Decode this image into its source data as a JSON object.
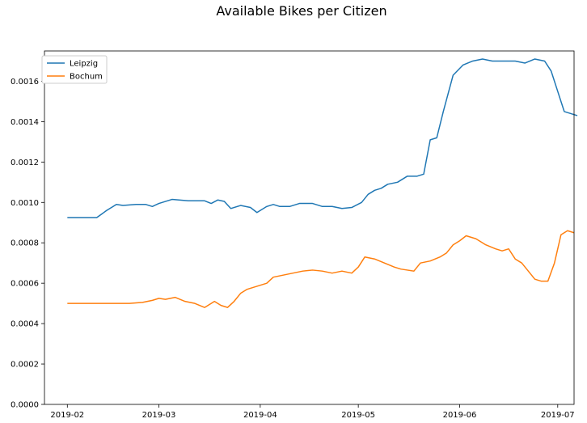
{
  "chart_data": {
    "type": "line",
    "title": "Available Bikes per Citizen",
    "xlabel": "",
    "ylabel": "",
    "x_type": "date",
    "xlim": [
      "2019-01-25",
      "2019-07-06"
    ],
    "ylim": [
      0,
      0.00175
    ],
    "x_ticks": [
      "2019-02-01",
      "2019-03-01",
      "2019-04-01",
      "2019-05-01",
      "2019-06-01",
      "2019-07-01"
    ],
    "x_tick_labels": [
      "2019-02",
      "2019-03",
      "2019-04",
      "2019-05",
      "2019-06",
      "2019-07"
    ],
    "y_ticks": [
      0,
      0.0002,
      0.0004,
      0.0006,
      0.0008,
      0.001,
      0.0012,
      0.0014,
      0.0016
    ],
    "y_tick_labels": [
      "0.0000",
      "0.0002",
      "0.0004",
      "0.0006",
      "0.0008",
      "0.0010",
      "0.0012",
      "0.0014",
      "0.0016"
    ],
    "grid": false,
    "legend_position": "top-left",
    "series": [
      {
        "name": "Leipzig",
        "color": "#1f77b4",
        "points": [
          [
            "2019-02-01",
            0.000925
          ],
          [
            "2019-02-10",
            0.000925
          ],
          [
            "2019-02-13",
            0.00096
          ],
          [
            "2019-02-16",
            0.00099
          ],
          [
            "2019-02-18",
            0.000985
          ],
          [
            "2019-02-22",
            0.00099
          ],
          [
            "2019-02-25",
            0.00099
          ],
          [
            "2019-02-27",
            0.00098
          ],
          [
            "2019-03-01",
            0.000995
          ],
          [
            "2019-03-05",
            0.001015
          ],
          [
            "2019-03-10",
            0.001008
          ],
          [
            "2019-03-15",
            0.001008
          ],
          [
            "2019-03-17",
            0.000995
          ],
          [
            "2019-03-19",
            0.001012
          ],
          [
            "2019-03-21",
            0.001005
          ],
          [
            "2019-03-23",
            0.00097
          ],
          [
            "2019-03-26",
            0.000985
          ],
          [
            "2019-03-29",
            0.000975
          ],
          [
            "2019-03-31",
            0.00095
          ],
          [
            "2019-04-03",
            0.00098
          ],
          [
            "2019-04-05",
            0.00099
          ],
          [
            "2019-04-07",
            0.00098
          ],
          [
            "2019-04-10",
            0.00098
          ],
          [
            "2019-04-13",
            0.000995
          ],
          [
            "2019-04-17",
            0.000995
          ],
          [
            "2019-04-20",
            0.00098
          ],
          [
            "2019-04-23",
            0.00098
          ],
          [
            "2019-04-26",
            0.00097
          ],
          [
            "2019-04-29",
            0.000975
          ],
          [
            "2019-05-02",
            0.001
          ],
          [
            "2019-05-04",
            0.00104
          ],
          [
            "2019-05-06",
            0.00106
          ],
          [
            "2019-05-08",
            0.00107
          ],
          [
            "2019-05-10",
            0.00109
          ],
          [
            "2019-05-13",
            0.0011
          ],
          [
            "2019-05-16",
            0.00113
          ],
          [
            "2019-05-19",
            0.00113
          ],
          [
            "2019-05-21",
            0.00114
          ],
          [
            "2019-05-23",
            0.00131
          ],
          [
            "2019-05-25",
            0.00132
          ],
          [
            "2019-05-27",
            0.00145
          ],
          [
            "2019-05-30",
            0.00163
          ],
          [
            "2019-06-02",
            0.00168
          ],
          [
            "2019-06-05",
            0.0017
          ],
          [
            "2019-06-08",
            0.00171
          ],
          [
            "2019-06-11",
            0.0017
          ],
          [
            "2019-06-15",
            0.0017
          ],
          [
            "2019-06-18",
            0.0017
          ],
          [
            "2019-06-21",
            0.00169
          ],
          [
            "2019-06-24",
            0.00171
          ],
          [
            "2019-06-27",
            0.0017
          ],
          [
            "2019-06-29",
            0.00165
          ],
          [
            "2019-07-01",
            0.00155
          ],
          [
            "2019-07-03",
            0.00145
          ],
          [
            "2019-07-05",
            0.00144
          ],
          [
            "2019-07-07",
            0.00143
          ]
        ]
      },
      {
        "name": "Bochum",
        "color": "#ff7f0e",
        "points": [
          [
            "2019-02-01",
            0.0005
          ],
          [
            "2019-02-20",
            0.0005
          ],
          [
            "2019-02-24",
            0.000505
          ],
          [
            "2019-02-27",
            0.000515
          ],
          [
            "2019-03-01",
            0.000525
          ],
          [
            "2019-03-03",
            0.00052
          ],
          [
            "2019-03-06",
            0.00053
          ],
          [
            "2019-03-09",
            0.00051
          ],
          [
            "2019-03-12",
            0.0005
          ],
          [
            "2019-03-15",
            0.00048
          ],
          [
            "2019-03-18",
            0.00051
          ],
          [
            "2019-03-20",
            0.00049
          ],
          [
            "2019-03-22",
            0.00048
          ],
          [
            "2019-03-24",
            0.00051
          ],
          [
            "2019-03-26",
            0.00055
          ],
          [
            "2019-03-28",
            0.00057
          ],
          [
            "2019-04-01",
            0.00059
          ],
          [
            "2019-04-03",
            0.0006
          ],
          [
            "2019-04-05",
            0.00063
          ],
          [
            "2019-04-08",
            0.00064
          ],
          [
            "2019-04-11",
            0.00065
          ],
          [
            "2019-04-14",
            0.00066
          ],
          [
            "2019-04-17",
            0.000665
          ],
          [
            "2019-04-20",
            0.00066
          ],
          [
            "2019-04-23",
            0.00065
          ],
          [
            "2019-04-26",
            0.00066
          ],
          [
            "2019-04-29",
            0.00065
          ],
          [
            "2019-05-01",
            0.00068
          ],
          [
            "2019-05-03",
            0.00073
          ],
          [
            "2019-05-06",
            0.00072
          ],
          [
            "2019-05-09",
            0.0007
          ],
          [
            "2019-05-12",
            0.00068
          ],
          [
            "2019-05-14",
            0.00067
          ],
          [
            "2019-05-16",
            0.000665
          ],
          [
            "2019-05-18",
            0.00066
          ],
          [
            "2019-05-20",
            0.0007
          ],
          [
            "2019-05-23",
            0.00071
          ],
          [
            "2019-05-26",
            0.00073
          ],
          [
            "2019-05-28",
            0.00075
          ],
          [
            "2019-05-30",
            0.00079
          ],
          [
            "2019-06-01",
            0.00081
          ],
          [
            "2019-06-03",
            0.000835
          ],
          [
            "2019-06-06",
            0.00082
          ],
          [
            "2019-06-09",
            0.00079
          ],
          [
            "2019-06-12",
            0.00077
          ],
          [
            "2019-06-14",
            0.00076
          ],
          [
            "2019-06-16",
            0.00077
          ],
          [
            "2019-06-18",
            0.00072
          ],
          [
            "2019-06-20",
            0.0007
          ],
          [
            "2019-06-22",
            0.00066
          ],
          [
            "2019-06-24",
            0.00062
          ],
          [
            "2019-06-26",
            0.00061
          ],
          [
            "2019-06-28",
            0.00061
          ],
          [
            "2019-06-30",
            0.0007
          ],
          [
            "2019-07-02",
            0.00084
          ],
          [
            "2019-07-04",
            0.00086
          ],
          [
            "2019-07-06",
            0.00085
          ]
        ]
      }
    ]
  }
}
